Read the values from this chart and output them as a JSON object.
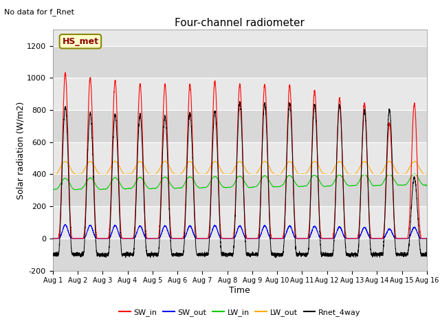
{
  "title": "Four-channel radiometer",
  "top_left_text": "No data for f_Rnet",
  "station_label": "HS_met",
  "xlabel": "Time",
  "ylabel": "Solar radiation (W/m2)",
  "ylim": [
    -200,
    1300
  ],
  "yticks": [
    -200,
    0,
    200,
    400,
    600,
    800,
    1000,
    1200
  ],
  "num_days": 15,
  "plot_bg_color": "#e8e8e8",
  "series": {
    "SW_in": {
      "color": "#ff0000"
    },
    "SW_out": {
      "color": "#0000ff"
    },
    "LW_in": {
      "color": "#00cc00"
    },
    "LW_out": {
      "color": "#ffaa00"
    },
    "Rnet_4way": {
      "color": "#000000"
    }
  },
  "xtick_labels": [
    "Aug 1",
    "Aug 2",
    "Aug 3",
    "Aug 4",
    "Aug 5",
    "Aug 6",
    "Aug 7",
    "Aug 8",
    "Aug 9",
    "Aug 10",
    "Aug 11",
    "Aug 12",
    "Aug 13",
    "Aug 14",
    "Aug 15",
    "Aug 16"
  ],
  "legend_entries": [
    "SW_in",
    "SW_out",
    "LW_in",
    "LW_out",
    "Rnet_4way"
  ],
  "legend_colors": [
    "#ff0000",
    "#0000ff",
    "#00cc00",
    "#ffaa00",
    "#000000"
  ],
  "sw_in_peaks": [
    1030,
    1000,
    985,
    960,
    960,
    960,
    980,
    960,
    960,
    950,
    920,
    870,
    840,
    720,
    840
  ],
  "rnet_peaks": [
    820,
    780,
    770,
    770,
    760,
    780,
    790,
    840,
    840,
    840,
    830,
    830,
    800,
    800,
    380
  ]
}
